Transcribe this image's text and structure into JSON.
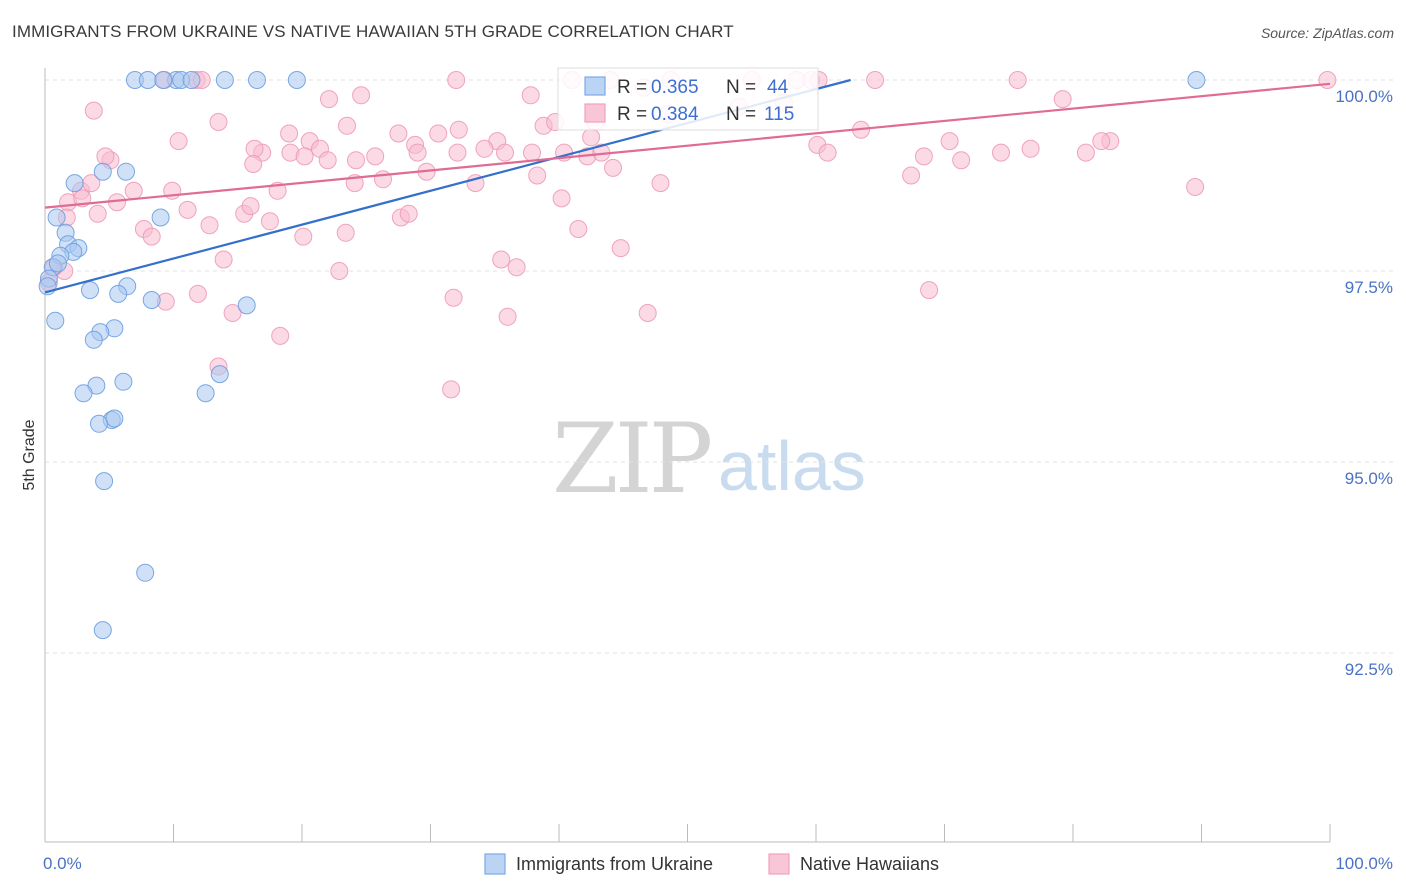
{
  "title": "IMMIGRANTS FROM UKRAINE VS NATIVE HAWAIIAN 5TH GRADE CORRELATION CHART",
  "source": "Source: ZipAtlas.com",
  "watermark": {
    "zip": "ZIP",
    "atlas": "atlas"
  },
  "colors": {
    "ukraine": "#7aaae8",
    "ukraine_line": "#3370cc",
    "hawaiian": "#f2a1bc",
    "hawaiian_line": "#e06b93",
    "axis_text": "#4a72c4"
  },
  "legend_top": [
    {
      "r_label": "R = ",
      "r_value": "0.365",
      "n_label": "N = ",
      "n_value": "44"
    },
    {
      "r_label": "R = ",
      "r_value": "0.384",
      "n_label": "N = ",
      "n_value": "115"
    }
  ],
  "legend_bottom": [
    "Immigrants from Ukraine",
    "Native Hawaiians"
  ],
  "chart_data": {
    "type": "scatter",
    "title": "IMMIGRANTS FROM UKRAINE VS NATIVE HAWAIIAN 5TH GRADE CORRELATION CHART",
    "xlabel": "",
    "ylabel": "5th Grade",
    "xlim": [
      0,
      100
    ],
    "ylim": [
      90.0,
      100.4
    ],
    "x_tick_labels": [
      "0.0%",
      "100.0%"
    ],
    "y_ticks": [
      92.5,
      95.0,
      97.5,
      100.0
    ],
    "y_tick_labels": [
      "92.5%",
      "95.0%",
      "97.5%",
      "100.0%"
    ],
    "series": [
      {
        "name": "Immigrants from Ukraine",
        "r": 0.365,
        "n": 44,
        "trend": {
          "x0": 0,
          "y0": 97.22,
          "x1": 62.7,
          "y1": 100.0
        },
        "points": [
          [
            7.0,
            100
          ],
          [
            8.0,
            100
          ],
          [
            10.2,
            100
          ],
          [
            10.6,
            100
          ],
          [
            11.4,
            100
          ],
          [
            14.0,
            100
          ],
          [
            16.5,
            100
          ],
          [
            19.6,
            100
          ],
          [
            89.6,
            100
          ],
          [
            4.5,
            98.8
          ],
          [
            6.3,
            98.8
          ],
          [
            2.3,
            98.65
          ],
          [
            0.9,
            98.2
          ],
          [
            9.0,
            98.2
          ],
          [
            1.6,
            98.0
          ],
          [
            1.8,
            97.85
          ],
          [
            2.6,
            97.8
          ],
          [
            2.2,
            97.75
          ],
          [
            1.2,
            97.7
          ],
          [
            0.6,
            97.55
          ],
          [
            0.3,
            97.4
          ],
          [
            3.5,
            97.25
          ],
          [
            6.4,
            97.3
          ],
          [
            5.7,
            97.2
          ],
          [
            8.3,
            97.12
          ],
          [
            15.7,
            97.05
          ],
          [
            0.8,
            96.85
          ],
          [
            5.4,
            96.75
          ],
          [
            4.3,
            96.7
          ],
          [
            3.8,
            96.6
          ],
          [
            6.1,
            96.05
          ],
          [
            4.0,
            96.0
          ],
          [
            3.0,
            95.9
          ],
          [
            12.5,
            95.9
          ],
          [
            13.6,
            96.15
          ],
          [
            5.2,
            95.55
          ],
          [
            5.4,
            95.57
          ],
          [
            4.2,
            95.5
          ],
          [
            4.6,
            94.75
          ],
          [
            7.8,
            93.55
          ],
          [
            4.5,
            92.8
          ],
          [
            0.2,
            97.3
          ],
          [
            1.0,
            97.6
          ],
          [
            9.2,
            100
          ]
        ]
      },
      {
        "name": "Native Hawaiians",
        "r": 0.384,
        "n": 115,
        "trend": {
          "x0": 0,
          "y0": 98.33,
          "x1": 100,
          "y1": 99.95
        },
        "points": [
          [
            9.3,
            100
          ],
          [
            11.8,
            100
          ],
          [
            12.2,
            100
          ],
          [
            32.0,
            100
          ],
          [
            41.0,
            100
          ],
          [
            44.0,
            100
          ],
          [
            48.7,
            100
          ],
          [
            55.0,
            100
          ],
          [
            58.5,
            100
          ],
          [
            59.6,
            100
          ],
          [
            60.2,
            100
          ],
          [
            64.6,
            100
          ],
          [
            75.7,
            100
          ],
          [
            99.8,
            100
          ],
          [
            3.8,
            99.6
          ],
          [
            22.1,
            99.75
          ],
          [
            24.6,
            99.8
          ],
          [
            37.8,
            99.8
          ],
          [
            46.6,
            99.9
          ],
          [
            79.2,
            99.75
          ],
          [
            13.5,
            99.45
          ],
          [
            23.5,
            99.4
          ],
          [
            27.5,
            99.3
          ],
          [
            30.6,
            99.3
          ],
          [
            32.2,
            99.35
          ],
          [
            38.8,
            99.4
          ],
          [
            39.7,
            99.45
          ],
          [
            42.8,
            99.45
          ],
          [
            63.5,
            99.35
          ],
          [
            10.4,
            99.2
          ],
          [
            19.0,
            99.3
          ],
          [
            20.6,
            99.2
          ],
          [
            28.8,
            99.15
          ],
          [
            35.2,
            99.2
          ],
          [
            42.5,
            99.25
          ],
          [
            70.4,
            99.2
          ],
          [
            82.9,
            99.2
          ],
          [
            48.5,
            99.55
          ],
          [
            54.0,
            99.65
          ],
          [
            57.5,
            99.7
          ],
          [
            16.9,
            99.05
          ],
          [
            16.3,
            99.1
          ],
          [
            19.1,
            99.05
          ],
          [
            20.2,
            99.0
          ],
          [
            21.4,
            99.1
          ],
          [
            22.0,
            98.95
          ],
          [
            24.2,
            98.95
          ],
          [
            25.7,
            99.0
          ],
          [
            29.0,
            99.05
          ],
          [
            32.1,
            99.05
          ],
          [
            34.2,
            99.1
          ],
          [
            35.8,
            99.05
          ],
          [
            37.9,
            99.05
          ],
          [
            40.4,
            99.05
          ],
          [
            42.2,
            99.0
          ],
          [
            43.3,
            99.05
          ],
          [
            60.1,
            99.15
          ],
          [
            60.9,
            99.05
          ],
          [
            68.4,
            99.0
          ],
          [
            71.3,
            98.95
          ],
          [
            74.4,
            99.05
          ],
          [
            76.7,
            99.1
          ],
          [
            81.0,
            99.05
          ],
          [
            82.2,
            99.2
          ],
          [
            16.2,
            98.9
          ],
          [
            5.1,
            98.95
          ],
          [
            4.7,
            99.0
          ],
          [
            2.8,
            98.55
          ],
          [
            3.6,
            98.65
          ],
          [
            1.8,
            98.4
          ],
          [
            6.9,
            98.55
          ],
          [
            9.9,
            98.55
          ],
          [
            18.1,
            98.55
          ],
          [
            26.3,
            98.7
          ],
          [
            24.1,
            98.65
          ],
          [
            29.7,
            98.8
          ],
          [
            33.5,
            98.65
          ],
          [
            38.3,
            98.75
          ],
          [
            40.2,
            98.45
          ],
          [
            44.2,
            98.85
          ],
          [
            47.9,
            98.65
          ],
          [
            67.4,
            98.75
          ],
          [
            89.5,
            98.6
          ],
          [
            4.1,
            98.25
          ],
          [
            11.1,
            98.3
          ],
          [
            15.5,
            98.25
          ],
          [
            16.0,
            98.35
          ],
          [
            17.5,
            98.15
          ],
          [
            7.7,
            98.05
          ],
          [
            8.3,
            97.95
          ],
          [
            12.8,
            98.1
          ],
          [
            20.1,
            97.95
          ],
          [
            23.4,
            98.0
          ],
          [
            27.7,
            98.2
          ],
          [
            28.3,
            98.25
          ],
          [
            41.5,
            98.05
          ],
          [
            44.8,
            97.8
          ],
          [
            1.5,
            97.5
          ],
          [
            13.9,
            97.65
          ],
          [
            22.9,
            97.5
          ],
          [
            35.5,
            97.65
          ],
          [
            36.7,
            97.55
          ],
          [
            31.8,
            97.15
          ],
          [
            11.9,
            97.2
          ],
          [
            14.6,
            96.95
          ],
          [
            18.3,
            96.65
          ],
          [
            9.4,
            97.1
          ],
          [
            36.0,
            96.9
          ],
          [
            46.9,
            96.95
          ],
          [
            68.8,
            97.25
          ],
          [
            13.5,
            96.25
          ],
          [
            31.6,
            95.95
          ],
          [
            0.3,
            97.35
          ],
          [
            0.7,
            97.55
          ],
          [
            1.7,
            98.2
          ],
          [
            2.9,
            98.45
          ],
          [
            5.6,
            98.4
          ]
        ]
      }
    ]
  }
}
